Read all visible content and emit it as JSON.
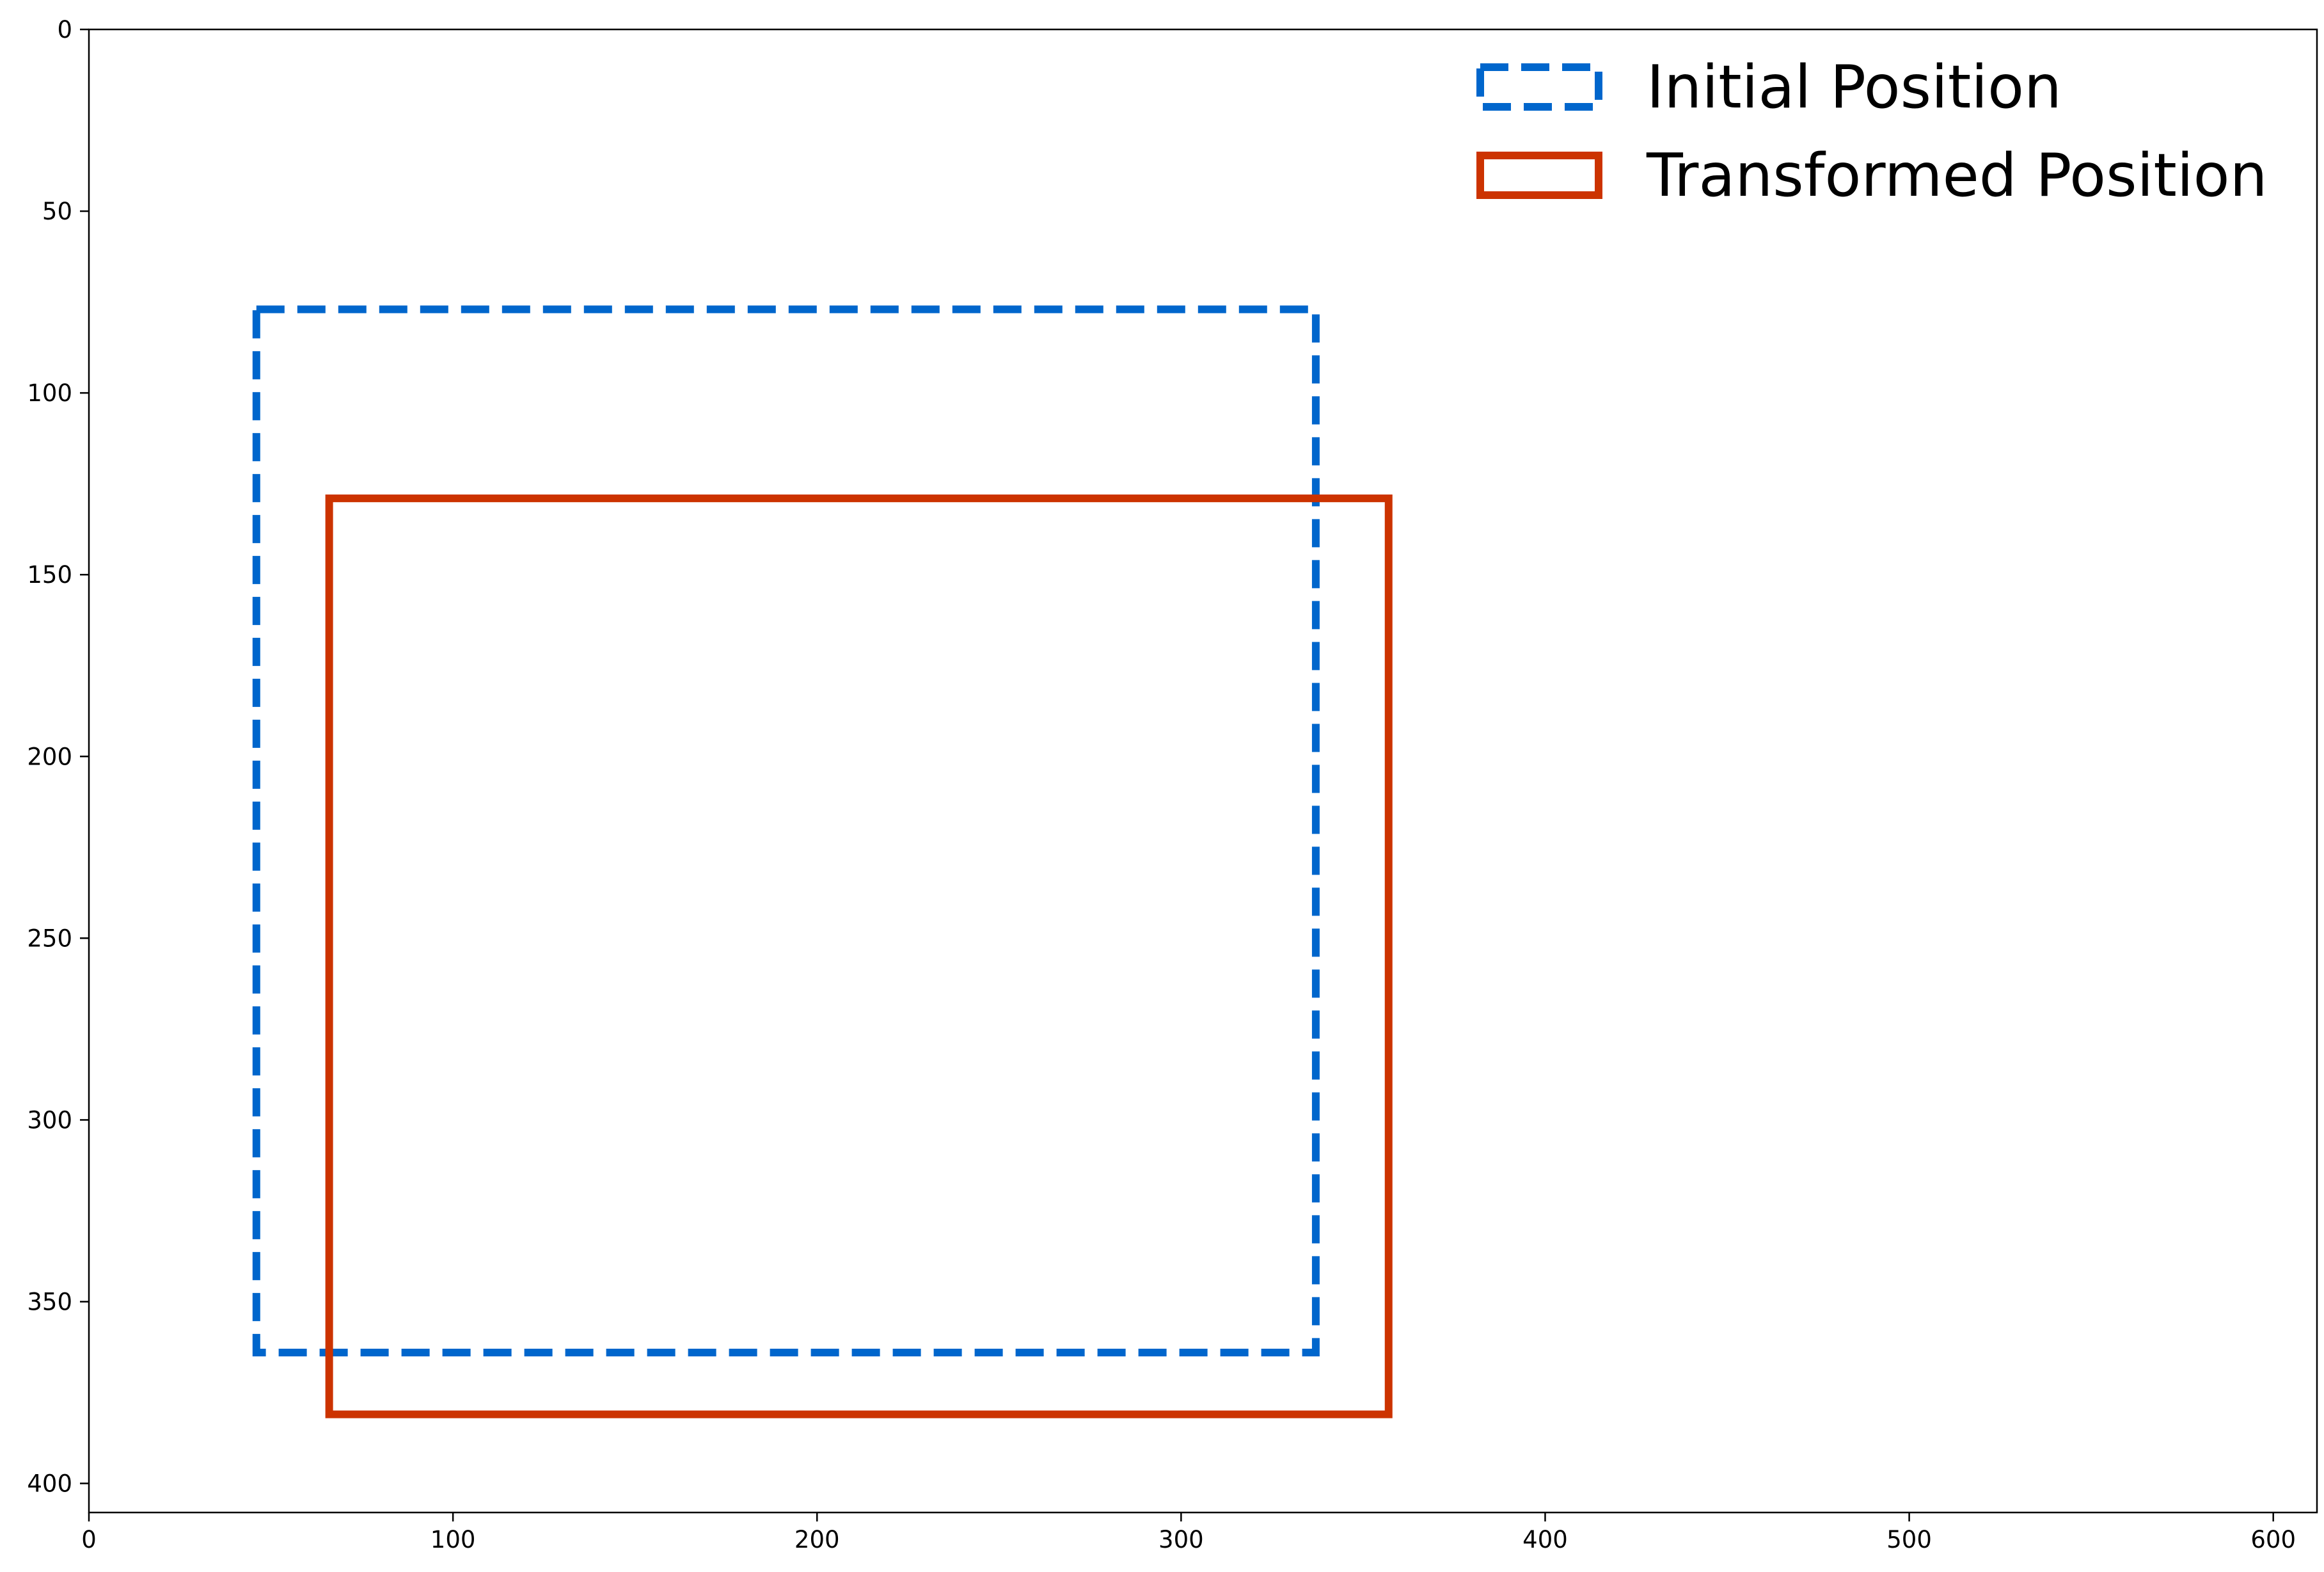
{
  "chart_data": {
    "type": "rectangle-overlay",
    "xlim": [
      0,
      612
    ],
    "ylim": [
      408,
      0
    ],
    "y_inverted": true,
    "grid": false,
    "legend_placement": "top-right",
    "x_ticks": [
      0,
      100,
      200,
      300,
      400,
      500,
      600
    ],
    "y_ticks": [
      0,
      50,
      100,
      150,
      200,
      250,
      300,
      350,
      400
    ],
    "series": [
      {
        "name": "Initial Position",
        "color": "#0066cc",
        "line_style": "dashed",
        "x_range": [
          46,
          337
        ],
        "y_range": [
          77,
          364
        ]
      },
      {
        "name": "Transformed Position",
        "color": "#cc3300",
        "line_style": "solid",
        "x_range": [
          66,
          357
        ],
        "y_range": [
          129,
          381
        ]
      }
    ]
  }
}
